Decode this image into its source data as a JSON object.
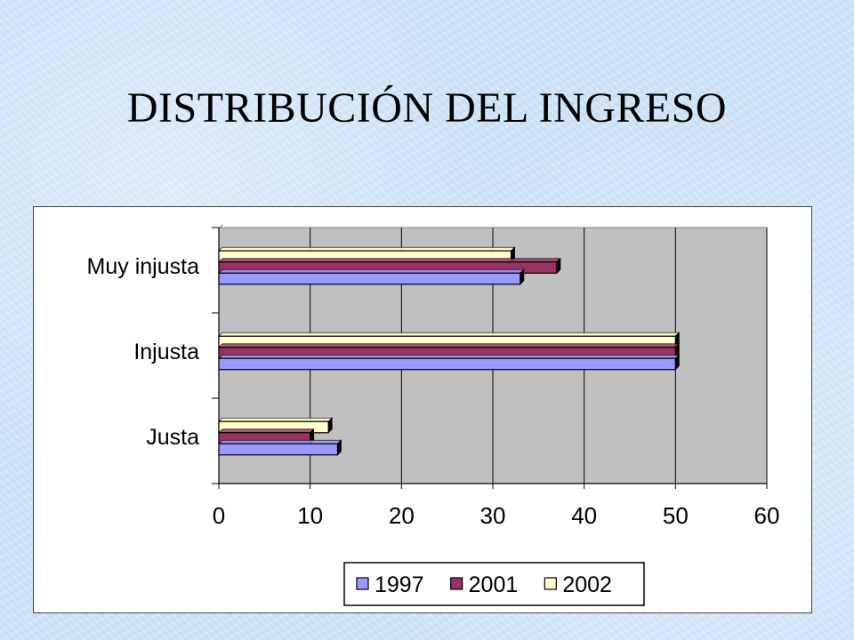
{
  "title": "DISTRIBUCIÓN DEL INGRESO",
  "chart_data": {
    "type": "bar",
    "orientation": "horizontal",
    "categories": [
      "Muy injusta",
      "Injusta",
      "Justa"
    ],
    "series": [
      {
        "name": "1997",
        "values": [
          33,
          50,
          13
        ],
        "color": "#9999ff"
      },
      {
        "name": "2001",
        "values": [
          37,
          50,
          10
        ],
        "color": "#993366"
      },
      {
        "name": "2002",
        "values": [
          32,
          50,
          12
        ],
        "color": "#ffffcc"
      }
    ],
    "xlim": [
      0,
      60
    ],
    "xticks": [
      "0",
      "10",
      "20",
      "30",
      "40",
      "50",
      "60"
    ],
    "grid": true,
    "plot_background": "#c0c0c0",
    "legend_position": "bottom"
  }
}
